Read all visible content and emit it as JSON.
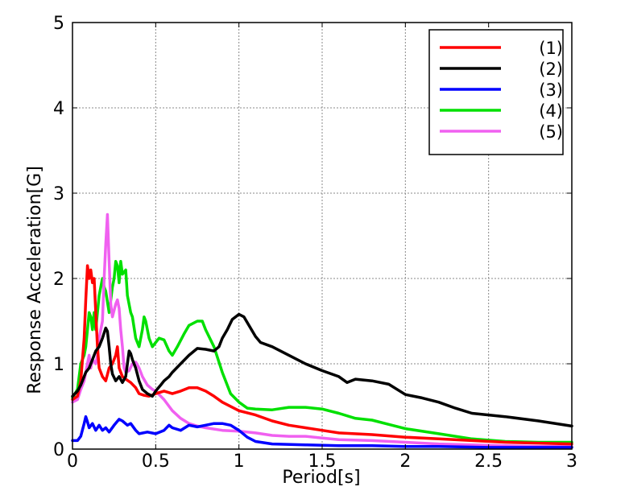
{
  "chart_data": {
    "type": "line",
    "title": "",
    "xlabel": "Period[s]",
    "ylabel": "Response Acceleration[G]",
    "xlim": [
      0,
      3
    ],
    "ylim": [
      0,
      5
    ],
    "xticks": [
      0,
      0.5,
      1,
      1.5,
      2,
      2.5,
      3
    ],
    "xtick_labels": [
      "0",
      "0.5",
      "1",
      "1.5",
      "2",
      "2.5",
      "3"
    ],
    "yticks": [
      0,
      1,
      2,
      3,
      4,
      5
    ],
    "ytick_labels": [
      "0",
      "1",
      "2",
      "3",
      "4",
      "5"
    ],
    "grid": true,
    "legend_position": "top-right",
    "series": [
      {
        "name": "(1)",
        "color": "#ff0000",
        "points": [
          [
            0,
            0.58
          ],
          [
            0.03,
            0.62
          ],
          [
            0.05,
            0.8
          ],
          [
            0.07,
            1.3
          ],
          [
            0.08,
            1.75
          ],
          [
            0.09,
            2.15
          ],
          [
            0.1,
            2.0
          ],
          [
            0.11,
            2.1
          ],
          [
            0.12,
            1.95
          ],
          [
            0.13,
            2.0
          ],
          [
            0.14,
            1.6
          ],
          [
            0.15,
            1.2
          ],
          [
            0.16,
            0.95
          ],
          [
            0.18,
            0.85
          ],
          [
            0.2,
            0.8
          ],
          [
            0.22,
            0.95
          ],
          [
            0.24,
            1.0
          ],
          [
            0.26,
            1.1
          ],
          [
            0.27,
            1.2
          ],
          [
            0.28,
            0.95
          ],
          [
            0.3,
            0.85
          ],
          [
            0.32,
            0.82
          ],
          [
            0.35,
            0.78
          ],
          [
            0.38,
            0.72
          ],
          [
            0.4,
            0.65
          ],
          [
            0.43,
            0.63
          ],
          [
            0.46,
            0.62
          ],
          [
            0.5,
            0.65
          ],
          [
            0.55,
            0.68
          ],
          [
            0.6,
            0.65
          ],
          [
            0.65,
            0.68
          ],
          [
            0.7,
            0.72
          ],
          [
            0.75,
            0.72
          ],
          [
            0.8,
            0.68
          ],
          [
            0.85,
            0.62
          ],
          [
            0.9,
            0.55
          ],
          [
            1.0,
            0.45
          ],
          [
            1.1,
            0.4
          ],
          [
            1.2,
            0.33
          ],
          [
            1.3,
            0.28
          ],
          [
            1.4,
            0.25
          ],
          [
            1.5,
            0.22
          ],
          [
            1.6,
            0.19
          ],
          [
            1.8,
            0.17
          ],
          [
            2.0,
            0.14
          ],
          [
            2.2,
            0.12
          ],
          [
            2.4,
            0.1
          ],
          [
            2.6,
            0.08
          ],
          [
            2.8,
            0.07
          ],
          [
            3.0,
            0.06
          ]
        ]
      },
      {
        "name": "(2)",
        "color": "#000000",
        "points": [
          [
            0,
            0.62
          ],
          [
            0.03,
            0.68
          ],
          [
            0.05,
            0.75
          ],
          [
            0.08,
            0.9
          ],
          [
            0.1,
            0.95
          ],
          [
            0.12,
            1.05
          ],
          [
            0.14,
            1.15
          ],
          [
            0.16,
            1.2
          ],
          [
            0.18,
            1.3
          ],
          [
            0.2,
            1.42
          ],
          [
            0.21,
            1.38
          ],
          [
            0.22,
            1.2
          ],
          [
            0.23,
            1.0
          ],
          [
            0.24,
            0.88
          ],
          [
            0.26,
            0.8
          ],
          [
            0.28,
            0.85
          ],
          [
            0.3,
            0.78
          ],
          [
            0.32,
            0.85
          ],
          [
            0.33,
            1.0
          ],
          [
            0.34,
            1.15
          ],
          [
            0.35,
            1.12
          ],
          [
            0.36,
            1.05
          ],
          [
            0.38,
            0.95
          ],
          [
            0.4,
            0.8
          ],
          [
            0.42,
            0.7
          ],
          [
            0.45,
            0.65
          ],
          [
            0.48,
            0.62
          ],
          [
            0.5,
            0.68
          ],
          [
            0.53,
            0.75
          ],
          [
            0.55,
            0.8
          ],
          [
            0.58,
            0.85
          ],
          [
            0.6,
            0.9
          ],
          [
            0.65,
            1.0
          ],
          [
            0.7,
            1.1
          ],
          [
            0.75,
            1.18
          ],
          [
            0.8,
            1.17
          ],
          [
            0.85,
            1.15
          ],
          [
            0.88,
            1.2
          ],
          [
            0.9,
            1.3
          ],
          [
            0.93,
            1.4
          ],
          [
            0.96,
            1.52
          ],
          [
            1.0,
            1.58
          ],
          [
            1.03,
            1.55
          ],
          [
            1.06,
            1.45
          ],
          [
            1.1,
            1.32
          ],
          [
            1.13,
            1.25
          ],
          [
            1.2,
            1.2
          ],
          [
            1.3,
            1.1
          ],
          [
            1.4,
            1.0
          ],
          [
            1.5,
            0.92
          ],
          [
            1.6,
            0.85
          ],
          [
            1.65,
            0.78
          ],
          [
            1.7,
            0.82
          ],
          [
            1.8,
            0.8
          ],
          [
            1.9,
            0.76
          ],
          [
            2.0,
            0.64
          ],
          [
            2.1,
            0.6
          ],
          [
            2.2,
            0.55
          ],
          [
            2.3,
            0.48
          ],
          [
            2.4,
            0.42
          ],
          [
            2.6,
            0.38
          ],
          [
            2.8,
            0.33
          ],
          [
            3.0,
            0.27
          ]
        ]
      },
      {
        "name": "(3)",
        "color": "#0000ff",
        "points": [
          [
            0,
            0.1
          ],
          [
            0.03,
            0.1
          ],
          [
            0.05,
            0.15
          ],
          [
            0.07,
            0.3
          ],
          [
            0.08,
            0.38
          ],
          [
            0.09,
            0.32
          ],
          [
            0.1,
            0.25
          ],
          [
            0.12,
            0.3
          ],
          [
            0.14,
            0.22
          ],
          [
            0.16,
            0.28
          ],
          [
            0.18,
            0.22
          ],
          [
            0.2,
            0.25
          ],
          [
            0.22,
            0.2
          ],
          [
            0.25,
            0.28
          ],
          [
            0.28,
            0.35
          ],
          [
            0.3,
            0.33
          ],
          [
            0.33,
            0.28
          ],
          [
            0.35,
            0.3
          ],
          [
            0.38,
            0.22
          ],
          [
            0.4,
            0.18
          ],
          [
            0.45,
            0.2
          ],
          [
            0.5,
            0.18
          ],
          [
            0.55,
            0.22
          ],
          [
            0.58,
            0.28
          ],
          [
            0.6,
            0.25
          ],
          [
            0.65,
            0.22
          ],
          [
            0.7,
            0.28
          ],
          [
            0.75,
            0.26
          ],
          [
            0.8,
            0.28
          ],
          [
            0.85,
            0.3
          ],
          [
            0.9,
            0.3
          ],
          [
            0.95,
            0.28
          ],
          [
            1.0,
            0.22
          ],
          [
            1.05,
            0.14
          ],
          [
            1.1,
            0.09
          ],
          [
            1.2,
            0.06
          ],
          [
            1.4,
            0.05
          ],
          [
            1.6,
            0.04
          ],
          [
            1.8,
            0.04
          ],
          [
            2.0,
            0.03
          ],
          [
            2.2,
            0.03
          ],
          [
            2.5,
            0.02
          ],
          [
            3.0,
            0.02
          ]
        ]
      },
      {
        "name": "(4)",
        "color": "#00e000",
        "points": [
          [
            0,
            0.6
          ],
          [
            0.03,
            0.7
          ],
          [
            0.05,
            1.0
          ],
          [
            0.07,
            1.1
          ],
          [
            0.08,
            1.2
          ],
          [
            0.1,
            1.6
          ],
          [
            0.11,
            1.55
          ],
          [
            0.12,
            1.4
          ],
          [
            0.13,
            1.6
          ],
          [
            0.14,
            1.4
          ],
          [
            0.16,
            1.8
          ],
          [
            0.18,
            2.0
          ],
          [
            0.19,
            1.9
          ],
          [
            0.2,
            1.85
          ],
          [
            0.22,
            1.6
          ],
          [
            0.24,
            1.9
          ],
          [
            0.25,
            2.0
          ],
          [
            0.26,
            2.2
          ],
          [
            0.27,
            2.15
          ],
          [
            0.28,
            1.95
          ],
          [
            0.29,
            2.2
          ],
          [
            0.3,
            2.05
          ],
          [
            0.32,
            2.1
          ],
          [
            0.33,
            1.8
          ],
          [
            0.35,
            1.6
          ],
          [
            0.36,
            1.55
          ],
          [
            0.38,
            1.3
          ],
          [
            0.4,
            1.2
          ],
          [
            0.42,
            1.4
          ],
          [
            0.43,
            1.55
          ],
          [
            0.44,
            1.5
          ],
          [
            0.46,
            1.3
          ],
          [
            0.48,
            1.2
          ],
          [
            0.5,
            1.25
          ],
          [
            0.52,
            1.3
          ],
          [
            0.55,
            1.28
          ],
          [
            0.58,
            1.15
          ],
          [
            0.6,
            1.1
          ],
          [
            0.63,
            1.2
          ],
          [
            0.67,
            1.35
          ],
          [
            0.7,
            1.45
          ],
          [
            0.75,
            1.5
          ],
          [
            0.78,
            1.5
          ],
          [
            0.8,
            1.4
          ],
          [
            0.85,
            1.2
          ],
          [
            0.9,
            0.9
          ],
          [
            0.95,
            0.65
          ],
          [
            1.0,
            0.55
          ],
          [
            1.05,
            0.48
          ],
          [
            1.1,
            0.47
          ],
          [
            1.2,
            0.46
          ],
          [
            1.3,
            0.49
          ],
          [
            1.4,
            0.49
          ],
          [
            1.5,
            0.47
          ],
          [
            1.6,
            0.42
          ],
          [
            1.7,
            0.36
          ],
          [
            1.8,
            0.34
          ],
          [
            1.9,
            0.29
          ],
          [
            2.0,
            0.24
          ],
          [
            2.2,
            0.18
          ],
          [
            2.4,
            0.12
          ],
          [
            2.6,
            0.09
          ],
          [
            2.8,
            0.08
          ],
          [
            3.0,
            0.08
          ]
        ]
      },
      {
        "name": "(5)",
        "color": "#f060f0",
        "points": [
          [
            0,
            0.55
          ],
          [
            0.03,
            0.58
          ],
          [
            0.05,
            0.7
          ],
          [
            0.07,
            0.8
          ],
          [
            0.08,
            0.9
          ],
          [
            0.1,
            1.1
          ],
          [
            0.11,
            0.95
          ],
          [
            0.12,
            1.05
          ],
          [
            0.14,
            1.0
          ],
          [
            0.15,
            1.1
          ],
          [
            0.16,
            1.3
          ],
          [
            0.18,
            1.5
          ],
          [
            0.19,
            2.0
          ],
          [
            0.2,
            2.4
          ],
          [
            0.21,
            2.75
          ],
          [
            0.22,
            2.2
          ],
          [
            0.23,
            1.7
          ],
          [
            0.24,
            1.55
          ],
          [
            0.26,
            1.7
          ],
          [
            0.27,
            1.75
          ],
          [
            0.28,
            1.65
          ],
          [
            0.29,
            1.4
          ],
          [
            0.3,
            1.2
          ],
          [
            0.31,
            0.95
          ],
          [
            0.32,
            0.9
          ],
          [
            0.34,
            0.92
          ],
          [
            0.36,
            1.0
          ],
          [
            0.38,
            1.02
          ],
          [
            0.4,
            0.95
          ],
          [
            0.42,
            0.85
          ],
          [
            0.45,
            0.75
          ],
          [
            0.48,
            0.7
          ],
          [
            0.5,
            0.68
          ],
          [
            0.55,
            0.58
          ],
          [
            0.6,
            0.45
          ],
          [
            0.65,
            0.36
          ],
          [
            0.7,
            0.3
          ],
          [
            0.75,
            0.27
          ],
          [
            0.8,
            0.25
          ],
          [
            0.9,
            0.22
          ],
          [
            1.0,
            0.21
          ],
          [
            1.1,
            0.19
          ],
          [
            1.2,
            0.16
          ],
          [
            1.3,
            0.15
          ],
          [
            1.4,
            0.15
          ],
          [
            1.5,
            0.13
          ],
          [
            1.6,
            0.11
          ],
          [
            1.8,
            0.1
          ],
          [
            2.0,
            0.08
          ],
          [
            2.2,
            0.06
          ],
          [
            2.4,
            0.05
          ],
          [
            2.6,
            0.04
          ],
          [
            2.8,
            0.03
          ],
          [
            3.0,
            0.03
          ]
        ]
      }
    ]
  }
}
